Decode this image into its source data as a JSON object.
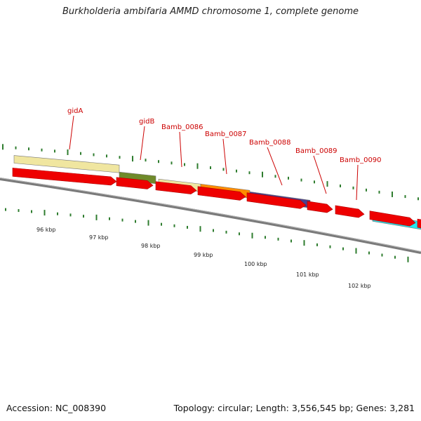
{
  "title": "Burkholderia ambifaria AMMD chromosome 1, complete genome",
  "footer": {
    "accession": "Accession: NC_008390",
    "summary": "Topology: circular; Length: 3,556,545 bp; Genes: 3,281"
  },
  "gene_labels": [
    "gidA",
    "gidB",
    "Bamb_0086",
    "Bamb_0087",
    "Bamb_0088",
    "Bamb_0089",
    "Bamb_0090"
  ],
  "kbp_labels": [
    "96 kbp",
    "97 kbp",
    "98 kbp",
    "99 kbp",
    "100 kbp",
    "101 kbp",
    "102 kbp"
  ],
  "colors": {
    "label_red": "#cc0000",
    "arrow_red": "#ee0000",
    "tick_green": "#2f7d2f",
    "backbone_grey": "#8a8a8a",
    "feature_khaki": "#f0e6a0",
    "feature_olive": "#6f8a2a",
    "feature_orange": "#ff8c00",
    "feature_indigo": "#4b3f8f",
    "feature_cyan": "#22e6ee"
  },
  "feature_colors": [
    "#f0e6a0",
    "#6f8a2a",
    "#f0e6a0",
    "#ff8c00",
    "#4b3f8f",
    "#22e6ee"
  ]
}
